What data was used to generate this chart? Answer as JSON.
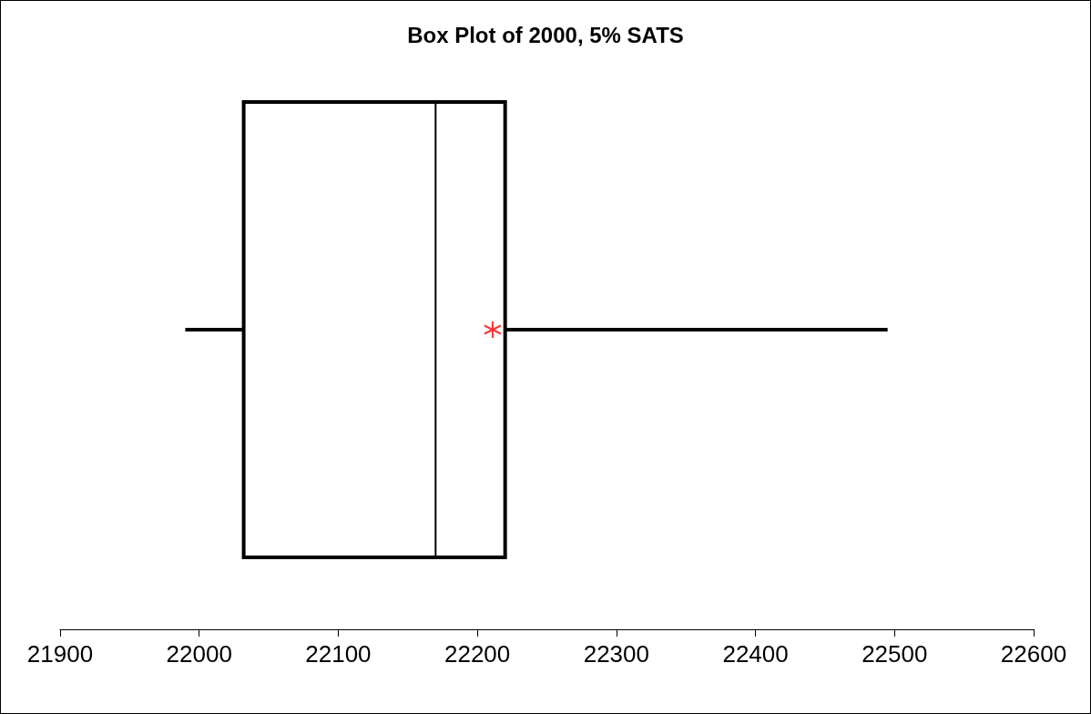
{
  "chart_data": {
    "type": "box",
    "title": "Box Plot of 2000, 5% SATS",
    "orientation": "horizontal",
    "categories": [
      null
    ],
    "series": [
      {
        "color": "#000000",
        "boxes": [
          {
            "low": 21990,
            "q1": 22032,
            "median": 22170,
            "q3": 22220,
            "high": 22495,
            "mean": 22211
          }
        ]
      }
    ],
    "xlim": [
      21900,
      22600
    ],
    "xticks": [
      21900,
      22000,
      22100,
      22200,
      22300,
      22400,
      22500,
      22600
    ],
    "marker": "cross",
    "grid": false,
    "tick_labels": "x"
  }
}
